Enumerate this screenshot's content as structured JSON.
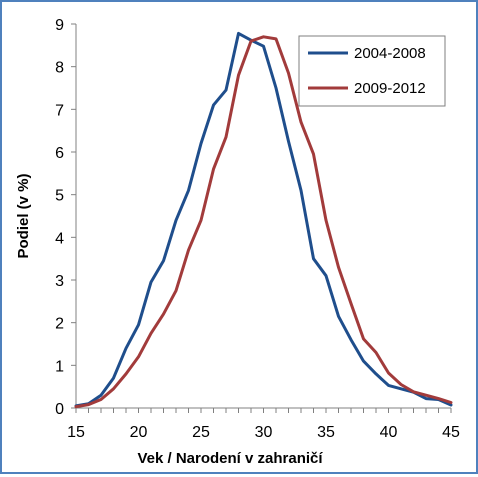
{
  "chart_data": {
    "type": "line",
    "title": "",
    "xlabel": "Vek / Narodení v zahraničí",
    "ylabel": "Podiel (v %)",
    "xlim": [
      15,
      45
    ],
    "ylim": [
      0,
      9
    ],
    "xticks": [
      15,
      20,
      25,
      30,
      35,
      40,
      45
    ],
    "yticks": [
      0,
      1,
      2,
      3,
      4,
      5,
      6,
      7,
      8,
      9
    ],
    "grid": false,
    "legend_position": "top-right",
    "x": [
      15,
      16,
      17,
      18,
      19,
      20,
      21,
      22,
      23,
      24,
      25,
      26,
      27,
      28,
      29,
      30,
      31,
      32,
      33,
      34,
      35,
      36,
      37,
      38,
      39,
      40,
      41,
      42,
      43,
      44,
      45
    ],
    "series": [
      {
        "name": "2004-2008",
        "color": "#1f4e8c",
        "values": [
          0.05,
          0.1,
          0.3,
          0.7,
          1.4,
          1.95,
          2.95,
          3.45,
          4.4,
          5.1,
          6.2,
          7.1,
          7.45,
          8.78,
          8.62,
          8.48,
          7.5,
          6.25,
          5.1,
          3.5,
          3.1,
          2.15,
          1.6,
          1.1,
          0.8,
          0.53,
          0.45,
          0.37,
          0.22,
          0.2,
          0.07
        ]
      },
      {
        "name": "2009-2012",
        "color": "#a23b3b",
        "values": [
          0.03,
          0.08,
          0.2,
          0.45,
          0.8,
          1.2,
          1.75,
          2.2,
          2.75,
          3.7,
          4.4,
          5.6,
          6.35,
          7.8,
          8.6,
          8.7,
          8.65,
          7.85,
          6.7,
          5.95,
          4.4,
          3.3,
          2.45,
          1.62,
          1.3,
          0.82,
          0.55,
          0.38,
          0.3,
          0.22,
          0.13
        ]
      }
    ]
  }
}
